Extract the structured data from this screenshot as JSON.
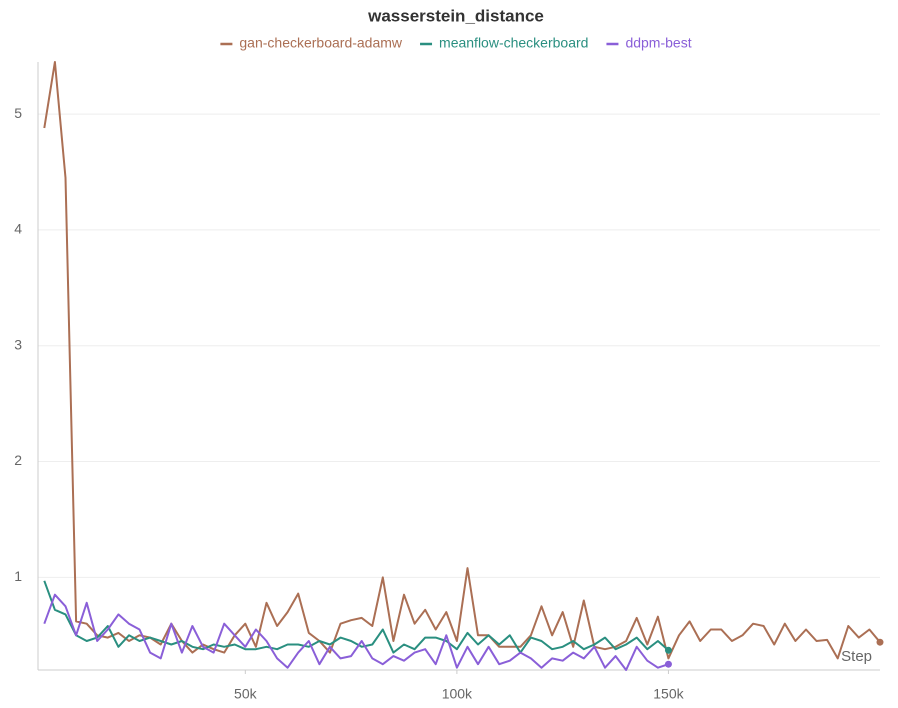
{
  "chart_data": {
    "type": "line",
    "title": "wasserstein_distance",
    "xlabel": "Step",
    "x": [
      2500,
      5000,
      7500,
      10000,
      12500,
      15000,
      17500,
      20000,
      22500,
      25000,
      27500,
      30000,
      32500,
      35000,
      37500,
      40000,
      42500,
      45000,
      47500,
      50000,
      52500,
      55000,
      57500,
      60000,
      62500,
      65000,
      67500,
      70000,
      72500,
      75000,
      77500,
      80000,
      82500,
      85000,
      87500,
      90000,
      92500,
      95000,
      97500,
      100000,
      102500,
      105000,
      107500,
      110000,
      112500,
      115000,
      117500,
      120000,
      122500,
      125000,
      127500,
      130000,
      132500,
      135000,
      137500,
      140000,
      142500,
      145000,
      147500,
      150000,
      152500,
      155000,
      157500,
      160000,
      162500,
      165000,
      167500,
      170000,
      172500,
      175000,
      177500,
      180000,
      182500,
      185000,
      187500,
      190000,
      192500,
      195000,
      197500,
      200000
    ],
    "series": [
      {
        "name": "gan-checkerboard-adamw",
        "color": "#ab6f54",
        "values": [
          4.88,
          5.45,
          4.45,
          0.62,
          0.6,
          0.5,
          0.48,
          0.52,
          0.45,
          0.5,
          0.48,
          0.42,
          0.6,
          0.45,
          0.35,
          0.42,
          0.38,
          0.35,
          0.5,
          0.6,
          0.4,
          0.78,
          0.58,
          0.7,
          0.86,
          0.52,
          0.45,
          0.35,
          0.6,
          0.63,
          0.65,
          0.58,
          1.0,
          0.45,
          0.85,
          0.6,
          0.72,
          0.55,
          0.7,
          0.45,
          1.08,
          0.5,
          0.5,
          0.4,
          0.4,
          0.4,
          0.5,
          0.75,
          0.5,
          0.7,
          0.4,
          0.8,
          0.4,
          0.38,
          0.4,
          0.45,
          0.65,
          0.42,
          0.66,
          0.3,
          0.5,
          0.62,
          0.45,
          0.55,
          0.55,
          0.45,
          0.5,
          0.6,
          0.58,
          0.42,
          0.6,
          0.45,
          0.55,
          0.45,
          0.46,
          0.3,
          0.58,
          0.48,
          0.55,
          0.44
        ]
      },
      {
        "name": "meanflow-checkerboard",
        "color": "#2a8f80",
        "values": [
          0.97,
          0.72,
          0.68,
          0.5,
          0.45,
          0.48,
          0.58,
          0.4,
          0.5,
          0.45,
          0.48,
          0.45,
          0.42,
          0.45,
          0.4,
          0.38,
          0.42,
          0.4,
          0.42,
          0.38,
          0.38,
          0.4,
          0.38,
          0.42,
          0.42,
          0.4,
          0.45,
          0.42,
          0.48,
          0.45,
          0.4,
          0.42,
          0.55,
          0.35,
          0.42,
          0.38,
          0.48,
          0.48,
          0.45,
          0.38,
          0.52,
          0.42,
          0.5,
          0.42,
          0.5,
          0.35,
          0.48,
          0.45,
          0.38,
          0.4,
          0.45,
          0.38,
          0.42,
          0.48,
          0.38,
          0.42,
          0.48,
          0.38,
          0.45,
          0.37,
          null,
          null,
          null,
          null,
          null,
          null,
          null,
          null,
          null,
          null,
          null,
          null,
          null,
          null,
          null,
          null,
          null,
          null,
          null,
          null
        ]
      },
      {
        "name": "ddpm-best",
        "color": "#8a5fd8",
        "values": [
          0.6,
          0.85,
          0.75,
          0.5,
          0.78,
          0.45,
          0.55,
          0.68,
          0.6,
          0.55,
          0.35,
          0.3,
          0.6,
          0.35,
          0.58,
          0.4,
          0.35,
          0.6,
          0.5,
          0.4,
          0.55,
          0.45,
          0.3,
          0.22,
          0.35,
          0.45,
          0.25,
          0.4,
          0.3,
          0.32,
          0.45,
          0.3,
          0.25,
          0.32,
          0.28,
          0.35,
          0.38,
          0.25,
          0.5,
          0.22,
          0.4,
          0.25,
          0.4,
          0.25,
          0.28,
          0.35,
          0.3,
          0.22,
          0.3,
          0.28,
          0.35,
          0.3,
          0.4,
          0.22,
          0.32,
          0.2,
          0.4,
          0.28,
          0.22,
          0.25,
          null,
          null,
          null,
          null,
          null,
          null,
          null,
          null,
          null,
          null,
          null,
          null,
          null,
          null,
          null,
          null,
          null,
          null,
          null,
          null
        ]
      }
    ],
    "xlim": [
      1000,
      200000
    ],
    "xticks": [
      {
        "value": 50000,
        "label": "50k"
      },
      {
        "value": 100000,
        "label": "100k"
      },
      {
        "value": 150000,
        "label": "150k"
      }
    ],
    "ylim": [
      0.2,
      5.45
    ],
    "yticks": [
      1,
      2,
      3,
      4,
      5
    ],
    "grid": true
  }
}
